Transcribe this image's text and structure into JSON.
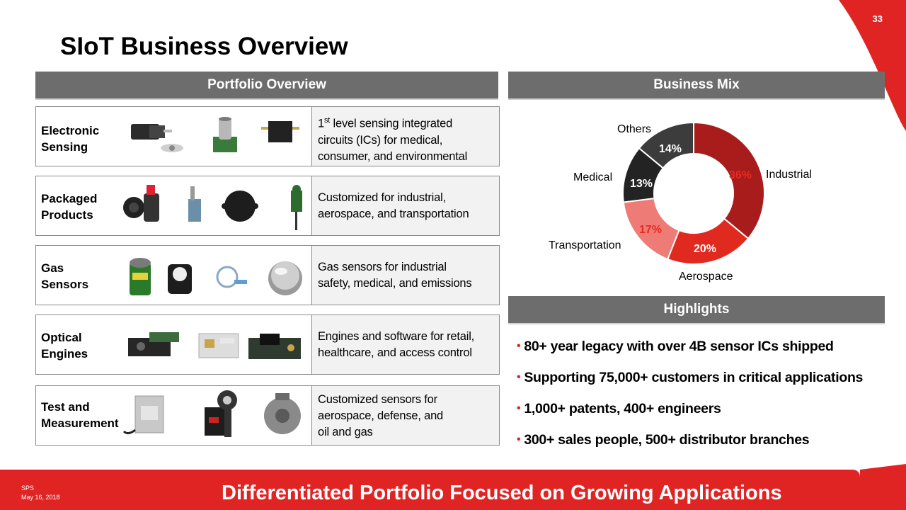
{
  "page_number": "33",
  "title": "SIoT Business Overview",
  "portfolio": {
    "header": "Portfolio Overview",
    "rows": [
      {
        "label": "Electronic\nSensing",
        "desc_sup_base": "1",
        "desc_sup": "st",
        "desc": " level sensing integrated\ncircuits (ICs) for medical,\nconsumer, and environmental"
      },
      {
        "label": "Packaged\nProducts",
        "desc": "Customized for industrial,\naerospace, and transportation"
      },
      {
        "label": "Gas\nSensors",
        "desc": "Gas sensors for industrial\nsafety, medical, and emissions"
      },
      {
        "label": "Optical\nEngines",
        "desc": "Engines and software for retail,\nhealthcare, and access control"
      },
      {
        "label": "Test and\nMeasurement",
        "desc": "Customized sensors for\naerospace, defense, and\noil and gas"
      }
    ]
  },
  "business_mix": {
    "header": "Business Mix"
  },
  "chart_data": {
    "type": "pie",
    "donut": true,
    "categories": [
      "Industrial",
      "Aerospace",
      "Transportation",
      "Medical",
      "Others"
    ],
    "values": [
      36,
      20,
      17,
      13,
      14
    ],
    "value_labels": [
      "36%",
      "20%",
      "17%",
      "13%",
      "14%"
    ],
    "colors": [
      "#a81c1c",
      "#e02a20",
      "#ef7b77",
      "#232323",
      "#3c3c3c"
    ],
    "value_label_colors": [
      "#e52b24",
      "#ffffff",
      "#e52b24",
      "#ffffff",
      "#ffffff"
    ],
    "legend": "labels next to slices"
  },
  "highlights": {
    "header": "Highlights",
    "items": [
      "80+ year legacy with over 4B sensor ICs shipped",
      "Supporting 75,000+ customers in critical applications",
      "1,000+ patents, 400+ engineers",
      "300+ sales people, 500+ distributor branches"
    ],
    "bullet": "•"
  },
  "footer": {
    "code": "SPS",
    "date": "May 16, 2018",
    "tagline": "Differentiated Portfolio Focused on Growing Applications"
  }
}
